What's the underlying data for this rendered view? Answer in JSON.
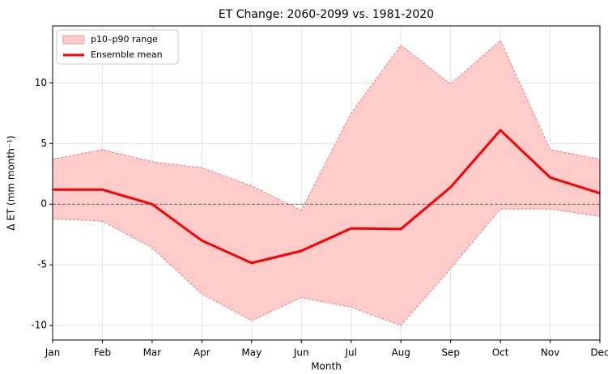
{
  "chart_data": {
    "type": "band-line",
    "title": "ET Change: 2060-2099 vs. 1981-2020",
    "x_label": "Month",
    "y_label": "Δ ET (mm month⁻¹)",
    "categories": [
      "Jan",
      "Feb",
      "Mar",
      "Apr",
      "May",
      "Jun",
      "Jul",
      "Aug",
      "Sep",
      "Oct",
      "Nov",
      "Dec"
    ],
    "series": [
      {
        "name": "p10–p90 range",
        "color": "#ffcccc",
        "edge_color": "#f06060",
        "lower": [
          -1.2,
          -1.4,
          -3.6,
          -7.4,
          -9.6,
          -7.7,
          -8.5,
          -10.0,
          -5.3,
          -0.4,
          -0.4,
          -1.0
        ],
        "upper": [
          3.7,
          4.5,
          3.5,
          3.0,
          1.5,
          -0.5,
          7.5,
          13.1,
          9.9,
          13.5,
          4.5,
          3.7
        ]
      },
      {
        "name": "Ensemble mean",
        "color": "#ff0000",
        "values": [
          1.2,
          1.2,
          0.0,
          -3.0,
          -4.85,
          -3.85,
          -2.0,
          -2.05,
          1.4,
          6.1,
          2.2,
          0.9
        ]
      }
    ],
    "reference_line": 0,
    "ylim": [
      -11.2,
      14.7
    ],
    "yticks": [
      -10,
      -5,
      0,
      5,
      10
    ],
    "grid": true,
    "legend": "upper left"
  }
}
